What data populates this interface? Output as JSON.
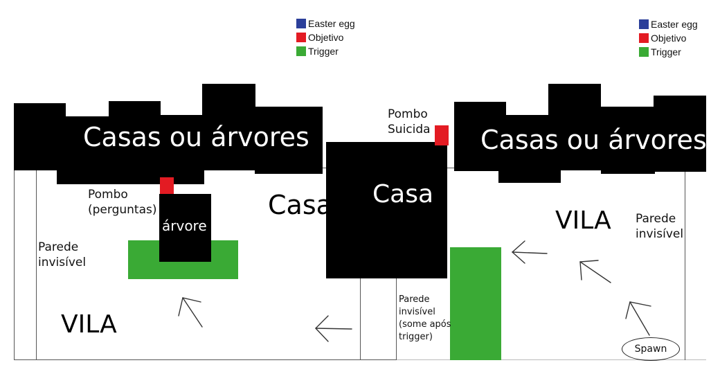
{
  "legend": [
    {
      "label": "Easter egg",
      "color": "#2b3f9a"
    },
    {
      "label": "Objetivo",
      "color": "#e31b23"
    },
    {
      "label": "Trigger",
      "color": "#3aaa35"
    }
  ],
  "labels": {
    "casas_left": "Casas ou árvores",
    "casas_right": "Casas ou árvores",
    "casa_outline": "Casa",
    "casa_block": "Casa",
    "arvore": "árvore",
    "pombo_perguntas_line1": "Pombo",
    "pombo_perguntas_line2": "(perguntas)",
    "pombo_suicida_line1": "Pombo",
    "pombo_suicida_line2": "Suicida",
    "parede_left_line1": "Parede",
    "parede_left_line2": "invisível",
    "parede_right_line1": "Parede",
    "parede_right_line2": "invisível",
    "parede_mid_line1": "Parede",
    "parede_mid_line2": "invisível",
    "parede_mid_line3": "(some após",
    "parede_mid_line4": "trigger)",
    "vila_left": "VILA",
    "vila_right": "VILA",
    "spawn": "Spawn"
  },
  "colors": {
    "objective": "#e31b23",
    "trigger": "#3aaa35",
    "building": "#000000",
    "arrow": "#333333"
  }
}
